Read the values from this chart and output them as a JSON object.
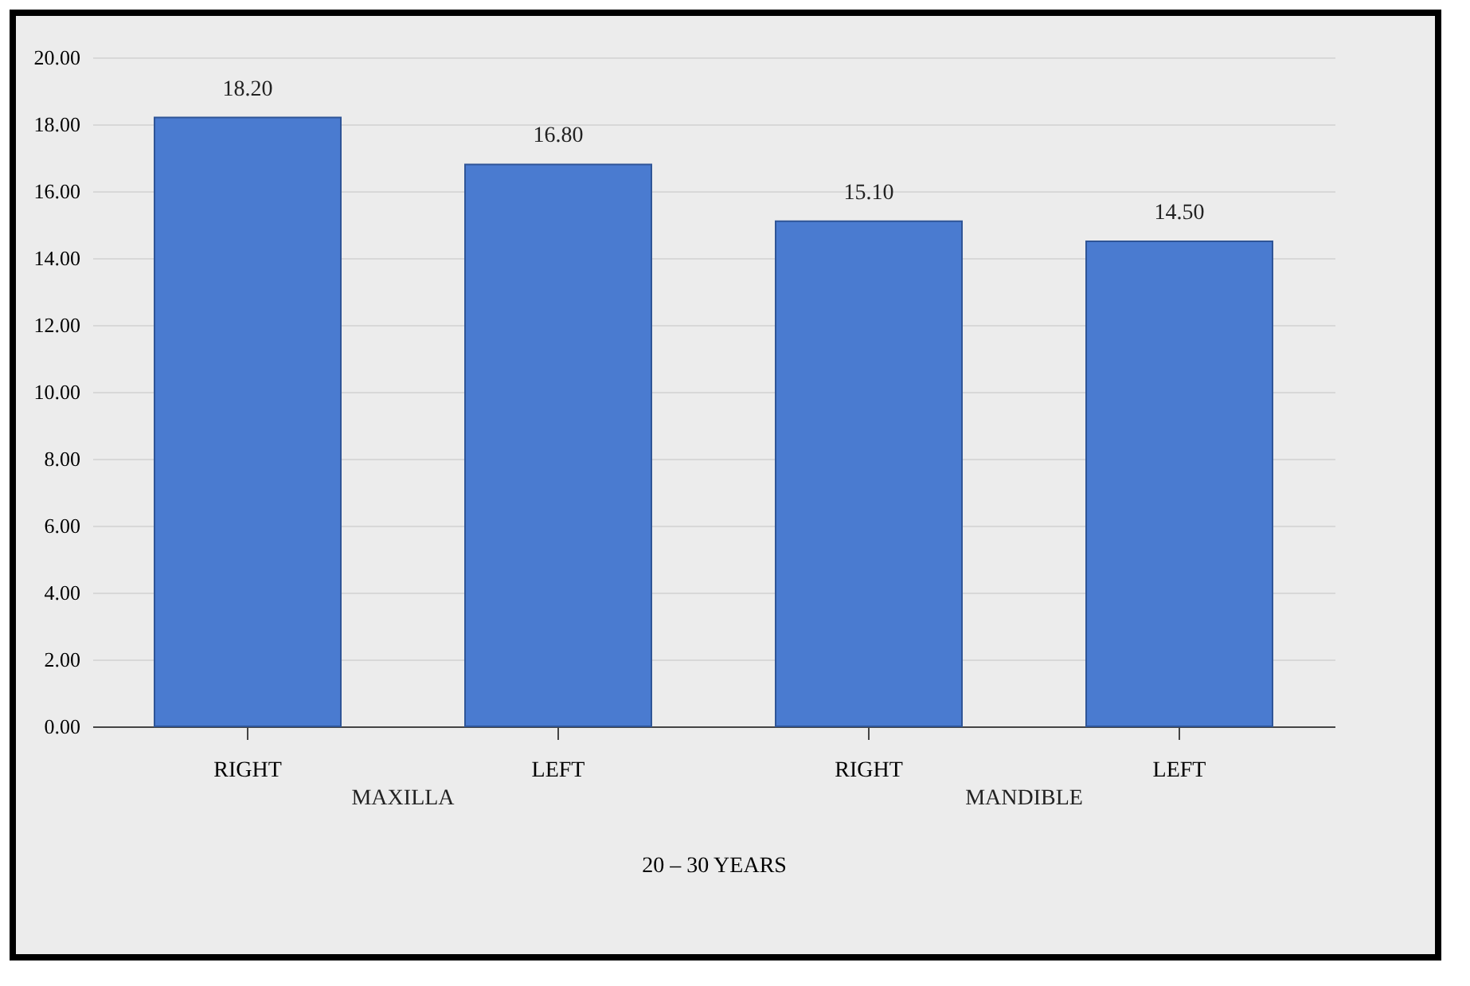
{
  "chart_data": {
    "type": "bar",
    "categories": [
      "RIGHT",
      "LEFT",
      "RIGHT",
      "LEFT"
    ],
    "values": [
      18.2,
      16.8,
      15.1,
      14.5
    ],
    "value_labels": [
      "18.20",
      "16.80",
      "15.10",
      "14.50"
    ],
    "color": "#4a7bd0",
    "xlabel": "20 – 30 YEARS",
    "annotations": [
      "MAXILLA",
      "MANDIBLE"
    ],
    "ylim": [
      0,
      20
    ],
    "yticks": [
      {
        "value": 0,
        "label": "0.00"
      },
      {
        "value": 2,
        "label": "2.00"
      },
      {
        "value": 4,
        "label": "4.00"
      },
      {
        "value": 6,
        "label": "6.00"
      },
      {
        "value": 8,
        "label": "8.00"
      },
      {
        "value": 10,
        "label": "10.00"
      },
      {
        "value": 12,
        "label": "12.00"
      },
      {
        "value": 14,
        "label": "14.00"
      },
      {
        "value": 16,
        "label": "16.00"
      },
      {
        "value": 18,
        "label": "18.00"
      },
      {
        "value": 20,
        "label": "20.00"
      }
    ],
    "grid": true
  }
}
